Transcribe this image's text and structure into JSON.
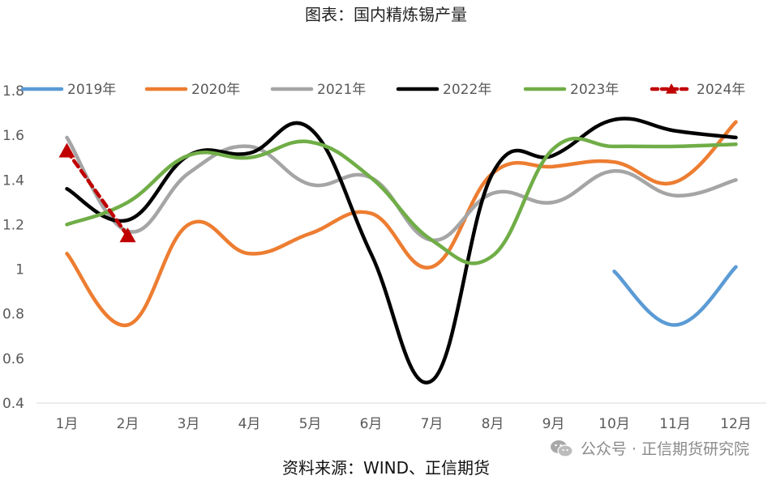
{
  "chart_data": {
    "type": "line",
    "title": "图表：国内精炼锡产量",
    "source": "资料来源：WIND、正信期货",
    "watermark": "公众号 · 正信期货研究院",
    "categories": [
      "1月",
      "2月",
      "3月",
      "4月",
      "5月",
      "6月",
      "7月",
      "8月",
      "9月",
      "10月",
      "11月",
      "12月"
    ],
    "y_ticks": [
      "0.4",
      "0.6",
      "0.8",
      "1",
      "1.2",
      "1.4",
      "1.6",
      "1.8"
    ],
    "ylim": [
      0.4,
      1.8
    ],
    "grid": false,
    "legend_position": "top",
    "series": [
      {
        "name": "2019年",
        "color": "#5b9bd5",
        "dashed": false,
        "marker": "none",
        "values": [
          null,
          null,
          null,
          null,
          null,
          null,
          null,
          null,
          null,
          0.99,
          0.75,
          1.01
        ]
      },
      {
        "name": "2020年",
        "color": "#ed7d31",
        "dashed": false,
        "marker": "none",
        "values": [
          1.07,
          0.75,
          1.2,
          1.07,
          1.16,
          1.25,
          1.01,
          1.43,
          1.46,
          1.48,
          1.39,
          1.66
        ]
      },
      {
        "name": "2021年",
        "color": "#a5a5a5",
        "dashed": false,
        "marker": "none",
        "values": [
          1.59,
          1.17,
          1.43,
          1.55,
          1.38,
          1.41,
          1.13,
          1.34,
          1.3,
          1.44,
          1.33,
          1.4
        ]
      },
      {
        "name": "2022年",
        "color": "#000000",
        "dashed": false,
        "marker": "none",
        "values": [
          1.36,
          1.22,
          1.51,
          1.52,
          1.63,
          1.07,
          0.5,
          1.43,
          1.51,
          1.67,
          1.62,
          1.59
        ]
      },
      {
        "name": "2023年",
        "color": "#70ad47",
        "dashed": false,
        "marker": "none",
        "values": [
          1.2,
          1.3,
          1.51,
          1.5,
          1.57,
          1.41,
          1.13,
          1.06,
          1.54,
          1.55,
          1.55,
          1.56
        ]
      },
      {
        "name": "2024年",
        "color": "#c00000",
        "dashed": true,
        "marker": "triangle",
        "values": [
          1.53,
          1.15,
          null,
          null,
          null,
          null,
          null,
          null,
          null,
          null,
          null,
          null
        ]
      }
    ]
  }
}
